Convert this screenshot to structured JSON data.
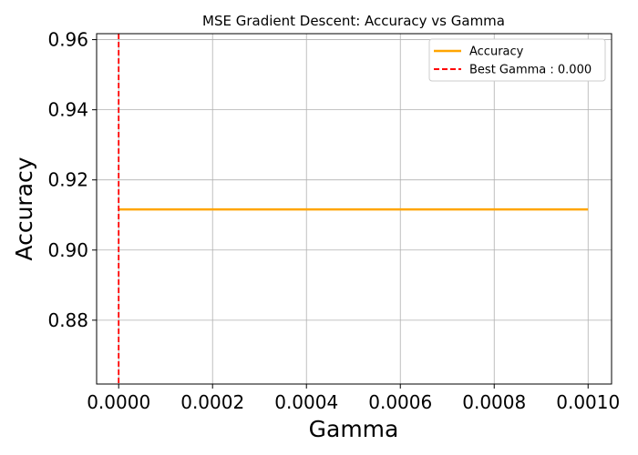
{
  "chart_data": {
    "type": "line",
    "title": "MSE Gradient Descent: Accuracy vs Gamma",
    "xlabel": "Gamma",
    "ylabel": "Accuracy",
    "xlim": [
      -4.7e-05,
      0.00105
    ],
    "ylim": [
      0.8618,
      0.9617
    ],
    "x_ticks": [
      0.0,
      0.0002,
      0.0004,
      0.0006,
      0.0008,
      0.001
    ],
    "x_tick_labels": [
      "0.0000",
      "0.0002",
      "0.0004",
      "0.0006",
      "0.0008",
      "0.0010"
    ],
    "y_ticks": [
      0.88,
      0.9,
      0.92,
      0.94,
      0.96
    ],
    "y_tick_labels": [
      "0.88",
      "0.90",
      "0.92",
      "0.94",
      "0.96"
    ],
    "grid": true,
    "legend_position": "top-right",
    "series": [
      {
        "name": "Accuracy",
        "color": "#ffa500",
        "style": "solid",
        "x": [
          0.0,
          0.0002,
          0.0004,
          0.0006,
          0.0008,
          0.001
        ],
        "y": [
          0.9116,
          0.9116,
          0.9116,
          0.9116,
          0.9116,
          0.9116
        ]
      }
    ],
    "vline": {
      "name": "Best Gamma : 0.000",
      "x": 0.0,
      "color": "#ff0000",
      "style": "dashed"
    }
  }
}
